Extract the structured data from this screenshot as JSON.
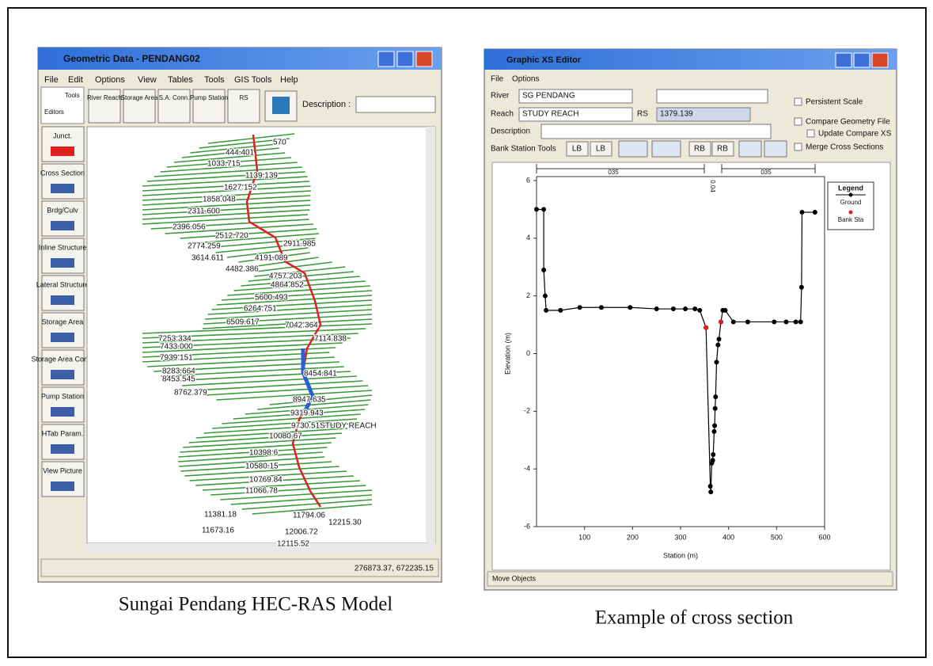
{
  "geometric_window": {
    "title": "Geometric Data - PENDANG02",
    "menu": [
      "File",
      "Edit",
      "Options",
      "View",
      "Tables",
      "Tools",
      "GIS Tools",
      "Help"
    ],
    "toolbar": {
      "tools": "Tools",
      "editors": "Editors",
      "buttons": [
        "River Reach",
        "Storage Area",
        "S.A. Conn.",
        "Pump Station",
        "RS"
      ],
      "description_label": "Description :"
    },
    "editors": [
      "Junct.",
      "Cross Section",
      "Brdg/Culv",
      "Inline Structure",
      "Lateral Structure",
      "Storage Area",
      "Storage Area Conn.",
      "Pump Station",
      "HTab Param.",
      "View Picture"
    ],
    "station_labels": [
      "570",
      "444.401",
      "1033.715",
      "1139.139",
      "1627.152",
      "1858.048",
      "2311.600",
      "2396.056",
      "2512.720",
      "2774.259",
      "2911.985",
      "3614.611",
      "4191.089",
      "4482.386",
      "4757.203",
      "4864.852",
      "5600.493",
      "6264.751",
      "6509.617",
      "7042.364",
      "7114.838",
      "7253.334",
      "7433.000",
      "7939.151",
      "8283.664",
      "8453.545",
      "8454.841",
      "8762.379",
      "8947.635",
      "9319.943",
      "9730.51STUDY REACH",
      "10080.67",
      "10398.6",
      "10580.15",
      "10769.84",
      "11066.78",
      "11381.18",
      "11794.06",
      "12215.30",
      "11673.16",
      "12006.72",
      "12115.52"
    ],
    "status": "276873.37, 672235.15"
  },
  "xs_window": {
    "title": "Graphic XS Editor",
    "menu": [
      "File",
      "Options"
    ],
    "river_label": "River",
    "river": "SG PENDANG",
    "reach_label": "Reach",
    "reach": "STUDY REACH",
    "rs_label": "RS",
    "rs": "1379.139",
    "description_label": "Description",
    "checkboxes": [
      "Persistent Scale",
      "Compare Geometry File",
      "Update Compare XS",
      "Merge Cross Sections"
    ],
    "bank_tools_label": "Bank Station Tools",
    "bank_buttons": [
      "LB",
      "LB",
      "RB",
      "RB"
    ],
    "status": "Move Objects"
  },
  "chart_data": {
    "type": "line",
    "xlabel": "Station (m)",
    "ylabel": "Elevation (m)",
    "xlim": [
      0,
      600
    ],
    "ylim": [
      -6,
      6
    ],
    "xticks": [
      100,
      200,
      300,
      400,
      500,
      600
    ],
    "yticks": [
      -6,
      -4,
      -2,
      0,
      2,
      4,
      6
    ],
    "manning_labels": [
      "035",
      "0.04",
      "035"
    ],
    "legend_title": "Legend",
    "series": [
      {
        "name": "Ground",
        "color": "#000000",
        "x": [
          0,
          15,
          15,
          18,
          20,
          50,
          90,
          135,
          195,
          250,
          285,
          310,
          330,
          340,
          353,
          362,
          363,
          365,
          367,
          368,
          370,
          371,
          372,
          373,
          375,
          378,
          380,
          384,
          388,
          393,
          410,
          440,
          495,
          520,
          540,
          550,
          552,
          553,
          580
        ],
        "y": [
          5,
          5,
          2.9,
          2,
          1.5,
          1.5,
          1.6,
          1.6,
          1.6,
          1.55,
          1.55,
          1.55,
          1.55,
          1.5,
          0.9,
          -4.6,
          -4.8,
          -3.8,
          -3.7,
          -3.5,
          -2.7,
          -2.5,
          -1.9,
          -1.5,
          -0.3,
          0.3,
          0.5,
          1.1,
          1.5,
          1.5,
          1.1,
          1.1,
          1.1,
          1.1,
          1.1,
          1.1,
          2.3,
          4.9,
          4.9
        ]
      },
      {
        "name": "Bank Sta",
        "color": "#e41a1c",
        "x": [
          353,
          384
        ],
        "y": [
          0.9,
          1.1
        ]
      }
    ]
  },
  "captions": [
    "Sungai Pendang HEC-RAS Model",
    "Example of cross section"
  ]
}
